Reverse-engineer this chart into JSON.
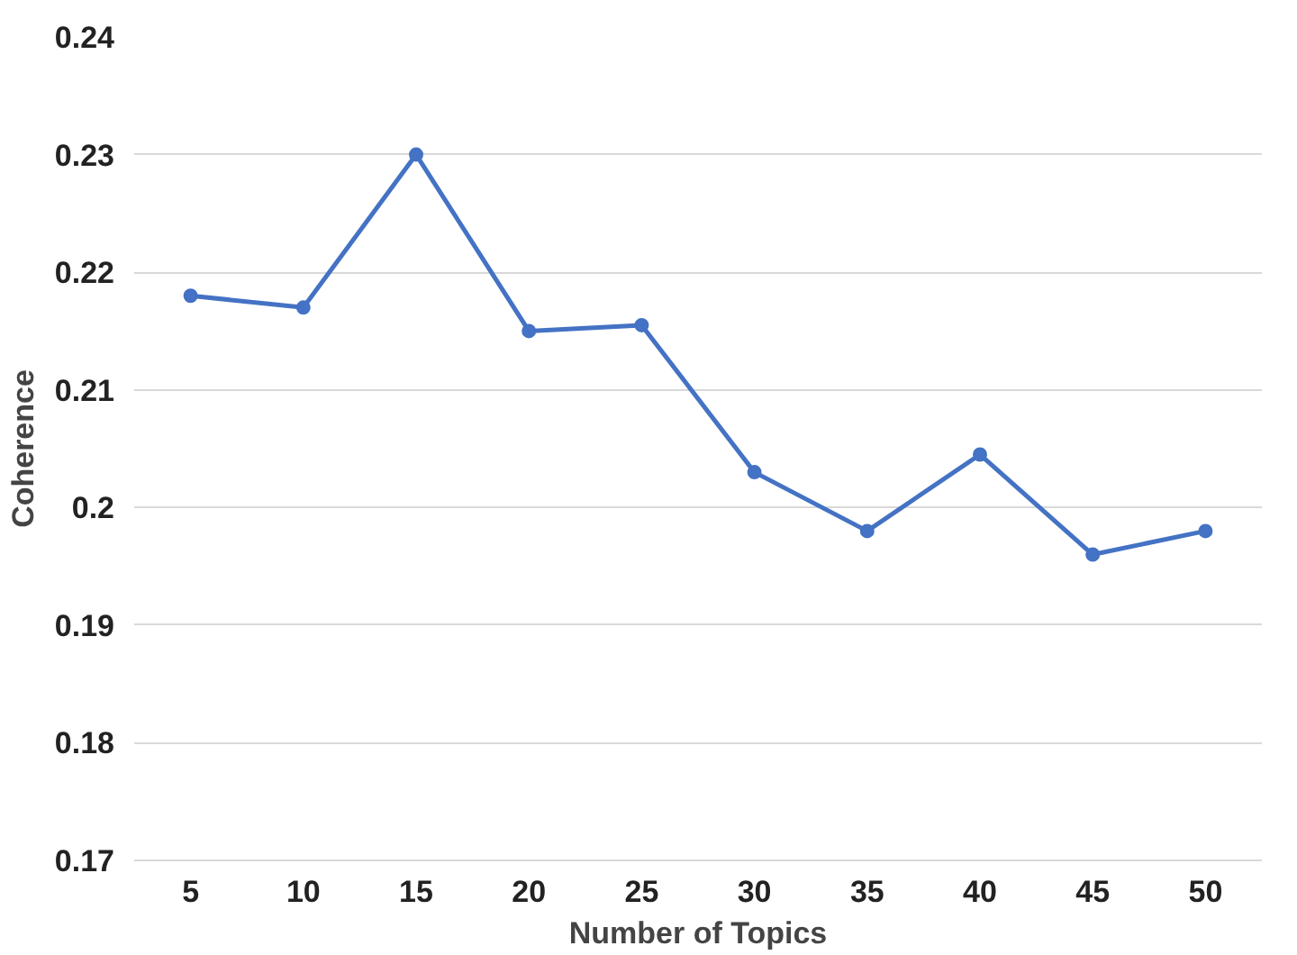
{
  "chart_data": {
    "type": "line",
    "xlabel": "Number of Topics",
    "ylabel": "Coherence",
    "categories": [
      "5",
      "10",
      "15",
      "20",
      "25",
      "30",
      "35",
      "40",
      "45",
      "50"
    ],
    "series": [
      {
        "color": "#4472c4",
        "values": [
          0.218,
          0.217,
          0.23,
          0.215,
          0.2155,
          0.203,
          0.198,
          0.2045,
          0.196,
          0.198
        ]
      }
    ],
    "ylim": [
      0.17,
      0.24
    ],
    "yticks": [
      0.17,
      0.18,
      0.19,
      0.2,
      0.21,
      0.22,
      0.23,
      0.24
    ],
    "grid": "y",
    "marker": "circle",
    "line_style": "solid"
  }
}
